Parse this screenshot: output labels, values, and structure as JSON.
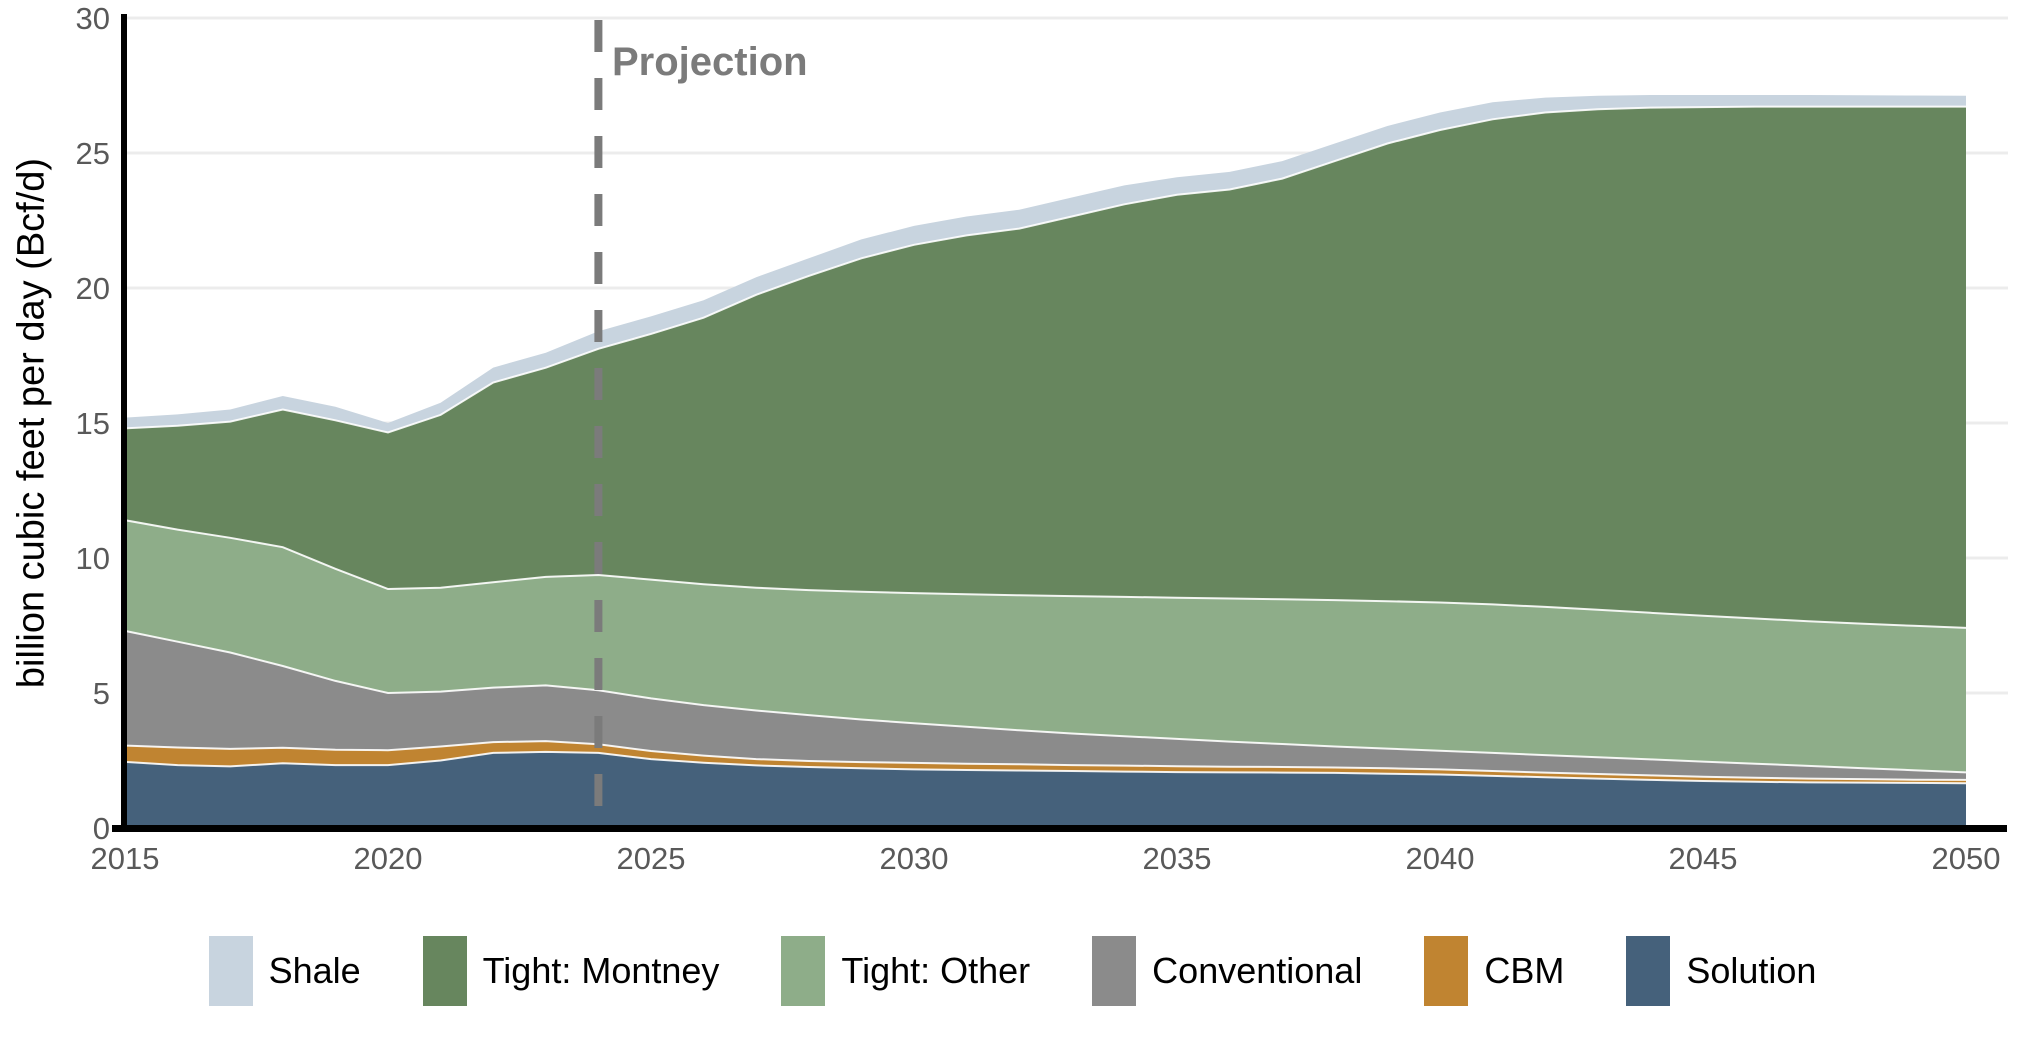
{
  "chart_data": {
    "type": "area",
    "stacked": true,
    "title": "",
    "ylabel": "billion cubic feet per day (Bcf/d)",
    "xlabel": "",
    "xlim": [
      2015,
      2050
    ],
    "ylim": [
      0,
      30
    ],
    "x_ticks": [
      2015,
      2020,
      2025,
      2030,
      2035,
      2040,
      2045,
      2050
    ],
    "y_ticks": [
      0,
      5,
      10,
      15,
      20,
      25,
      30
    ],
    "grid": "horizontal",
    "years": [
      2015,
      2016,
      2017,
      2018,
      2019,
      2020,
      2021,
      2022,
      2023,
      2024,
      2025,
      2026,
      2027,
      2028,
      2029,
      2030,
      2031,
      2032,
      2033,
      2034,
      2035,
      2036,
      2037,
      2038,
      2039,
      2040,
      2041,
      2042,
      2043,
      2044,
      2045,
      2046,
      2047,
      2048,
      2049,
      2050
    ],
    "series": [
      {
        "name": "Solution",
        "color": "#45617b",
        "values": [
          2.45,
          2.33,
          2.28,
          2.4,
          2.33,
          2.33,
          2.5,
          2.78,
          2.82,
          2.78,
          2.55,
          2.42,
          2.32,
          2.26,
          2.21,
          2.17,
          2.15,
          2.13,
          2.11,
          2.09,
          2.07,
          2.06,
          2.05,
          2.04,
          2.01,
          1.98,
          1.93,
          1.88,
          1.83,
          1.78,
          1.74,
          1.71,
          1.69,
          1.68,
          1.67,
          1.66
        ]
      },
      {
        "name": "CBM",
        "color": "#c08431",
        "values": [
          0.6,
          0.65,
          0.65,
          0.57,
          0.57,
          0.55,
          0.52,
          0.4,
          0.4,
          0.32,
          0.3,
          0.26,
          0.23,
          0.22,
          0.23,
          0.24,
          0.23,
          0.23,
          0.22,
          0.22,
          0.22,
          0.21,
          0.21,
          0.2,
          0.2,
          0.19,
          0.18,
          0.17,
          0.17,
          0.17,
          0.16,
          0.15,
          0.14,
          0.13,
          0.12,
          0.12
        ]
      },
      {
        "name": "Conventional",
        "color": "#8b8b8b",
        "values": [
          4.25,
          3.92,
          3.57,
          3.03,
          2.55,
          2.12,
          2.03,
          2.02,
          2.06,
          2.0,
          1.95,
          1.87,
          1.8,
          1.7,
          1.58,
          1.47,
          1.37,
          1.26,
          1.17,
          1.09,
          1.01,
          0.93,
          0.85,
          0.78,
          0.73,
          0.69,
          0.67,
          0.65,
          0.62,
          0.59,
          0.56,
          0.52,
          0.47,
          0.41,
          0.35,
          0.28
        ]
      },
      {
        "name": "Tight: Other",
        "color": "#8ead89",
        "values": [
          4.1,
          4.15,
          4.25,
          4.4,
          4.15,
          3.85,
          3.85,
          3.9,
          4.02,
          4.27,
          4.4,
          4.48,
          4.55,
          4.63,
          4.73,
          4.82,
          4.91,
          5.0,
          5.09,
          5.16,
          5.23,
          5.3,
          5.36,
          5.42,
          5.46,
          5.49,
          5.5,
          5.49,
          5.46,
          5.43,
          5.4,
          5.38,
          5.36,
          5.35,
          5.35,
          5.35
        ]
      },
      {
        "name": "Tight: Montney",
        "color": "#67865e",
        "values": [
          3.4,
          3.85,
          4.3,
          5.1,
          5.5,
          5.8,
          6.4,
          7.4,
          7.75,
          8.38,
          9.1,
          9.87,
          10.85,
          11.64,
          12.35,
          12.9,
          13.29,
          13.58,
          14.06,
          14.54,
          14.92,
          15.15,
          15.58,
          16.26,
          16.95,
          17.5,
          17.97,
          18.31,
          18.54,
          18.71,
          18.84,
          18.96,
          19.06,
          19.15,
          19.23,
          19.31
        ]
      },
      {
        "name": "Shale",
        "color": "#c8d4df",
        "values": [
          0.4,
          0.42,
          0.45,
          0.5,
          0.5,
          0.35,
          0.45,
          0.55,
          0.55,
          0.65,
          0.65,
          0.65,
          0.65,
          0.65,
          0.7,
          0.7,
          0.7,
          0.7,
          0.7,
          0.7,
          0.65,
          0.65,
          0.65,
          0.65,
          0.65,
          0.65,
          0.63,
          0.55,
          0.5,
          0.47,
          0.45,
          0.43,
          0.43,
          0.42,
          0.41,
          0.4
        ]
      }
    ],
    "legend": {
      "position": "bottom",
      "order": [
        "Shale",
        "Tight: Montney",
        "Tight: Other",
        "Conventional",
        "CBM",
        "Solution"
      ]
    },
    "annotation": {
      "text": "Projection",
      "x": 2024
    },
    "projection_line": {
      "x": 2024,
      "style": "dashed",
      "color": "#7b7b7b"
    }
  },
  "style_colors": {
    "axis": "#000000",
    "tick_text": "#595959",
    "gridline": "#ececec",
    "projection": "#7b7b7b",
    "band_separator": "#ffffff",
    "background": "#ffffff"
  }
}
